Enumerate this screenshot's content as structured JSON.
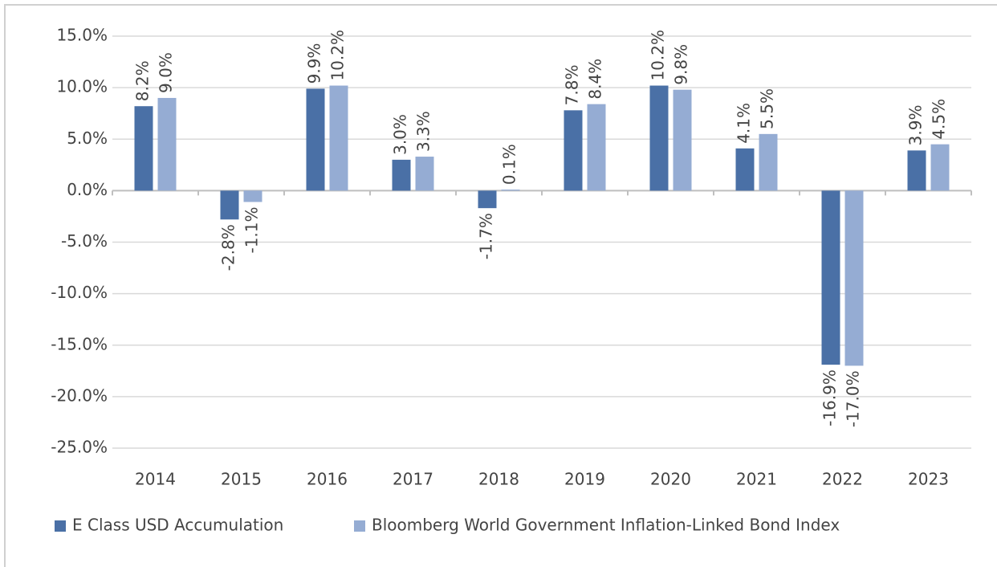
{
  "chart_data": {
    "type": "bar",
    "categories": [
      "2014",
      "2015",
      "2016",
      "2017",
      "2018",
      "2019",
      "2020",
      "2021",
      "2022",
      "2023"
    ],
    "series": [
      {
        "name": "E Class USD Accumulation",
        "color": "#4a70a6",
        "values": [
          8.2,
          -2.8,
          9.9,
          3.0,
          -1.7,
          7.8,
          10.2,
          4.1,
          -16.9,
          3.9
        ],
        "value_labels": [
          "8.2%",
          "-2.8%",
          "9.9%",
          "3.0%",
          "-1.7%",
          "7.8%",
          "10.2%",
          "4.1%",
          "-16.9%",
          "3.9%"
        ]
      },
      {
        "name": "Bloomberg World Government Inflation-Linked Bond Index",
        "color": "#95acd3",
        "values": [
          9.0,
          -1.1,
          10.2,
          3.3,
          0.1,
          8.4,
          9.8,
          5.5,
          -17.0,
          4.5
        ],
        "value_labels": [
          "9.0%",
          "-1.1%",
          "10.2%",
          "3.3%",
          "0.1%",
          "8.4%",
          "9.8%",
          "5.5%",
          "-17.0%",
          "4.5%"
        ]
      }
    ],
    "ylim": [
      -25,
      15
    ],
    "yticks": [
      {
        "value": -25,
        "label": "-25.0%"
      },
      {
        "value": -20,
        "label": "-20.0%"
      },
      {
        "value": -15,
        "label": "-15.0%"
      },
      {
        "value": -10,
        "label": "-10.0%"
      },
      {
        "value": -5,
        "label": "-5.0%"
      },
      {
        "value": 0,
        "label": "0.0%"
      },
      {
        "value": 5,
        "label": "5.0%"
      },
      {
        "value": 10,
        "label": "10.0%"
      },
      {
        "value": 15,
        "label": "15.0%"
      }
    ],
    "grid": true,
    "legend": "bottom"
  }
}
